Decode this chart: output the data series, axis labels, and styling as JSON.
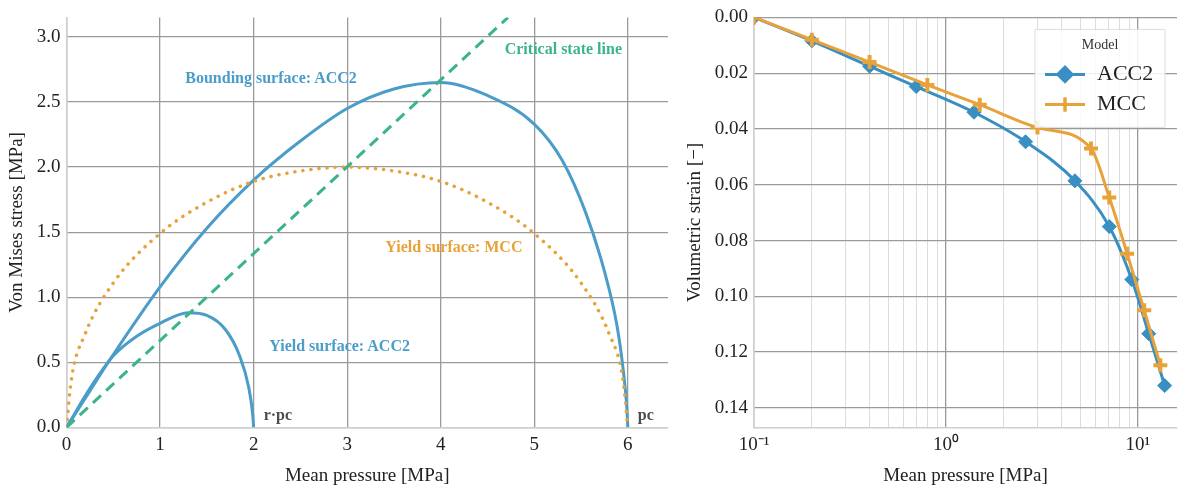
{
  "chart_data": [
    {
      "type": "line",
      "xlabel": "Mean pressure [MPa]",
      "ylabel": "Von Mises stress [MPa]",
      "xlim": [
        0,
        6.43
      ],
      "ylim": [
        0,
        3.15
      ],
      "xticks": [
        0,
        1,
        2,
        3,
        4,
        5,
        6
      ],
      "yticks": [
        {
          "value": 0,
          "label": "0.0"
        },
        {
          "value": 0.5,
          "label": "0.5"
        },
        {
          "value": 1,
          "label": "1.0"
        },
        {
          "value": 1.5,
          "label": "1.5"
        },
        {
          "value": 2,
          "label": "2.0"
        },
        {
          "value": 2.5,
          "label": "2.5"
        },
        {
          "value": 3,
          "label": "3.0"
        }
      ],
      "grid": true,
      "legend": false,
      "marker": "none",
      "series": [
        {
          "name": "Bounding surface: ACC2",
          "color": "#4a9cc9",
          "line_style": "solid",
          "x": [
            0,
            0.25,
            0.5,
            1,
            1.5,
            2,
            2.5,
            3,
            3.5,
            4,
            4.5,
            5,
            5.3,
            5.55,
            5.75,
            5.88,
            5.95,
            5.99,
            6
          ],
          "values": [
            0,
            0.28,
            0.56,
            1.08,
            1.53,
            1.9,
            2.2,
            2.45,
            2.6,
            2.65,
            2.55,
            2.33,
            2.05,
            1.65,
            1.2,
            0.8,
            0.45,
            0.15,
            0
          ]
        },
        {
          "name": "Yield surface: ACC2",
          "color": "#4a9cc9",
          "line_style": "solid",
          "x": [
            0,
            0.25,
            0.5,
            0.75,
            1,
            1.3,
            1.5,
            1.7,
            1.85,
            1.95,
            1.99,
            2
          ],
          "values": [
            0,
            0.3,
            0.55,
            0.7,
            0.8,
            0.88,
            0.86,
            0.75,
            0.55,
            0.3,
            0.1,
            0
          ]
        },
        {
          "name": "Yield surface: MCC",
          "color": "#e8a23a",
          "line_style": "dotted",
          "x": [
            0,
            0.05,
            0.2,
            0.5,
            1,
            1.5,
            2,
            2.5,
            3,
            3.5,
            4,
            4.5,
            5,
            5.5,
            5.8,
            5.95,
            6
          ],
          "values": [
            0,
            0.36,
            0.72,
            1.11,
            1.49,
            1.73,
            1.89,
            1.97,
            2,
            1.97,
            1.89,
            1.73,
            1.49,
            1.11,
            0.72,
            0.36,
            0
          ]
        },
        {
          "name": "Critical state line",
          "color": "#3cb48a",
          "line_style": "dashed",
          "x": [
            0,
            4.72
          ],
          "values": [
            0,
            3.15
          ]
        }
      ],
      "annotations": [
        {
          "text": "r·pc",
          "x": 2,
          "y": 0
        },
        {
          "text": "pc",
          "x": 6,
          "y": 0
        }
      ]
    },
    {
      "type": "line",
      "xlabel": "Mean pressure [MPa]",
      "ylabel": "Volumetric strain [−]",
      "log": "x",
      "xlim": [
        0.1,
        16
      ],
      "ylim": [
        0.147,
        0
      ],
      "xticks": [
        {
          "value": 0.1,
          "label": "10⁻¹"
        },
        {
          "value": 0.2,
          "label": null
        },
        {
          "value": 0.3,
          "label": null
        },
        {
          "value": 0.4,
          "label": null
        },
        {
          "value": 0.5,
          "label": null
        },
        {
          "value": 0.6,
          "label": null
        },
        {
          "value": 0.7,
          "label": null
        },
        {
          "value": 0.8,
          "label": null
        },
        {
          "value": 0.9,
          "label": null
        },
        {
          "value": 1,
          "label": "10⁰"
        },
        {
          "value": 2,
          "label": null
        },
        {
          "value": 3,
          "label": null
        },
        {
          "value": 4,
          "label": null
        },
        {
          "value": 5,
          "label": null
        },
        {
          "value": 6,
          "label": null
        },
        {
          "value": 7,
          "label": null
        },
        {
          "value": 8,
          "label": null
        },
        {
          "value": 9,
          "label": null
        },
        {
          "value": 10,
          "label": "10¹"
        }
      ],
      "yticks": [
        {
          "value": 0,
          "label": "0.00"
        },
        {
          "value": 0.02,
          "label": "0.02"
        },
        {
          "value": 0.04,
          "label": "0.04"
        },
        {
          "value": 0.06,
          "label": "0.06"
        },
        {
          "value": 0.08,
          "label": "0.08"
        },
        {
          "value": 0.1,
          "label": "0.10"
        },
        {
          "value": 0.12,
          "label": "0.12"
        },
        {
          "value": 0.14,
          "label": "0.14"
        }
      ],
      "grid": true,
      "legend": "top right",
      "legend_title": "Model",
      "line_style": "solid",
      "series": [
        {
          "name": "ACC2",
          "color": "#3a8fc2",
          "marker": "diamond",
          "x": [
            0.1,
            0.2,
            0.4,
            0.7,
            1.4,
            2.6,
            4.7,
            7.1,
            9.3,
            11.4,
            13.8
          ],
          "values": [
            0,
            0.0084,
            0.0175,
            0.0248,
            0.034,
            0.0446,
            0.0586,
            0.075,
            0.094,
            0.1134,
            0.132
          ]
        },
        {
          "name": "MCC",
          "color": "#e8a23a",
          "marker": "cross",
          "x": [
            0.1,
            0.2,
            0.4,
            0.8,
            1.5,
            3,
            5.7,
            7.1,
            8.8,
            10.8,
            13.1
          ],
          "values": [
            0,
            0.008,
            0.016,
            0.0242,
            0.0313,
            0.0395,
            0.047,
            0.0646,
            0.0847,
            0.105,
            0.1247
          ]
        }
      ]
    }
  ]
}
